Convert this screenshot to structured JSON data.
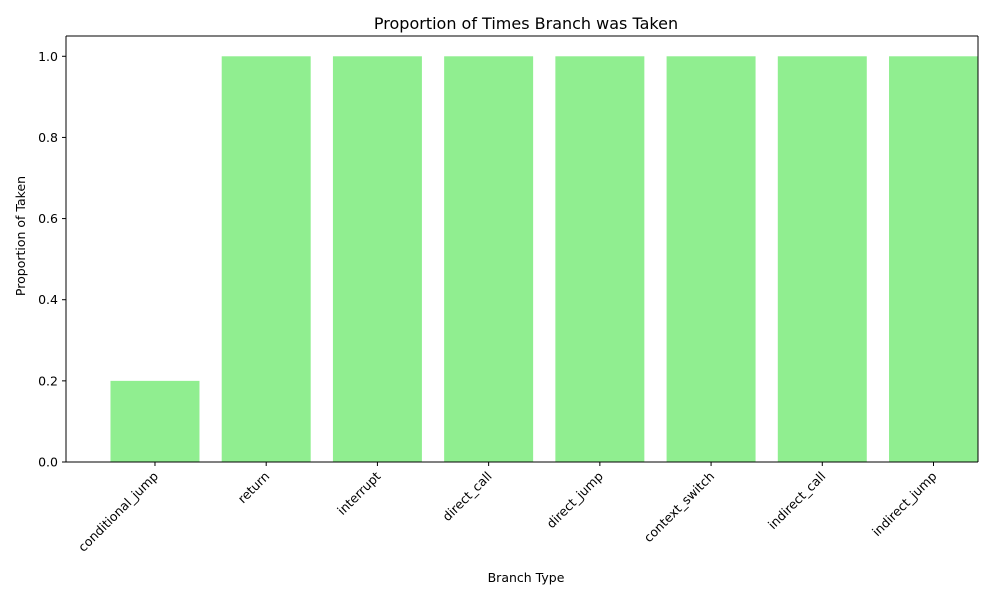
{
  "colors": {
    "bar": "#90ee90",
    "axis": "#000000",
    "background": "#ffffff"
  },
  "chart_data": {
    "type": "bar",
    "title": "Proportion of Times Branch was Taken",
    "xlabel": "Branch Type",
    "ylabel": "Proportion of Taken",
    "categories": [
      "conditional_jump",
      "return",
      "interrupt",
      "direct_call",
      "direct_jump",
      "context_switch",
      "indirect_call",
      "indirect_jump"
    ],
    "values": [
      0.2,
      1.0,
      1.0,
      1.0,
      1.0,
      1.0,
      1.0,
      1.0
    ],
    "ylim": [
      0,
      1.05
    ],
    "yticks": [
      0.0,
      0.2,
      0.4,
      0.6,
      0.8,
      1.0
    ],
    "ytick_labels": [
      "0.0",
      "0.2",
      "0.4",
      "0.6",
      "0.8",
      "1.0"
    ],
    "grid": false,
    "legend": "none",
    "xtick_rotation_degrees": 45
  }
}
